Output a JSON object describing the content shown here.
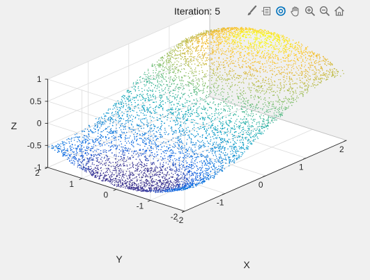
{
  "figure": {
    "background": "#f0f0f0",
    "toolbar": {
      "icons": [
        "brush-icon",
        "legend-icon",
        "rotate-3d-icon",
        "pan-hand-icon",
        "zoom-in-icon",
        "zoom-out-icon",
        "home-icon"
      ],
      "accent": "#0072bd",
      "icon_color": "#6e6e6e"
    }
  },
  "chart_data": {
    "type": "scatter3d",
    "title": "Iteration: 5",
    "xlabel": "X",
    "ylabel": "Y",
    "zlabel": "Z",
    "xlim": [
      -2,
      2
    ],
    "ylim": [
      -2,
      2
    ],
    "zlim": [
      -1,
      1
    ],
    "xticks": [
      "-2",
      "-1",
      "0",
      "1",
      "2"
    ],
    "yticks": [
      "-2",
      "-1",
      "0",
      "1",
      "2"
    ],
    "zticks": [
      "-1",
      "-0.5",
      "0",
      "0.5",
      "1"
    ],
    "grid": true,
    "colormap": "parula",
    "surface": "z = sin(x) * cos(y / 2), sampled points coloured by z",
    "point_count": 7000
  }
}
